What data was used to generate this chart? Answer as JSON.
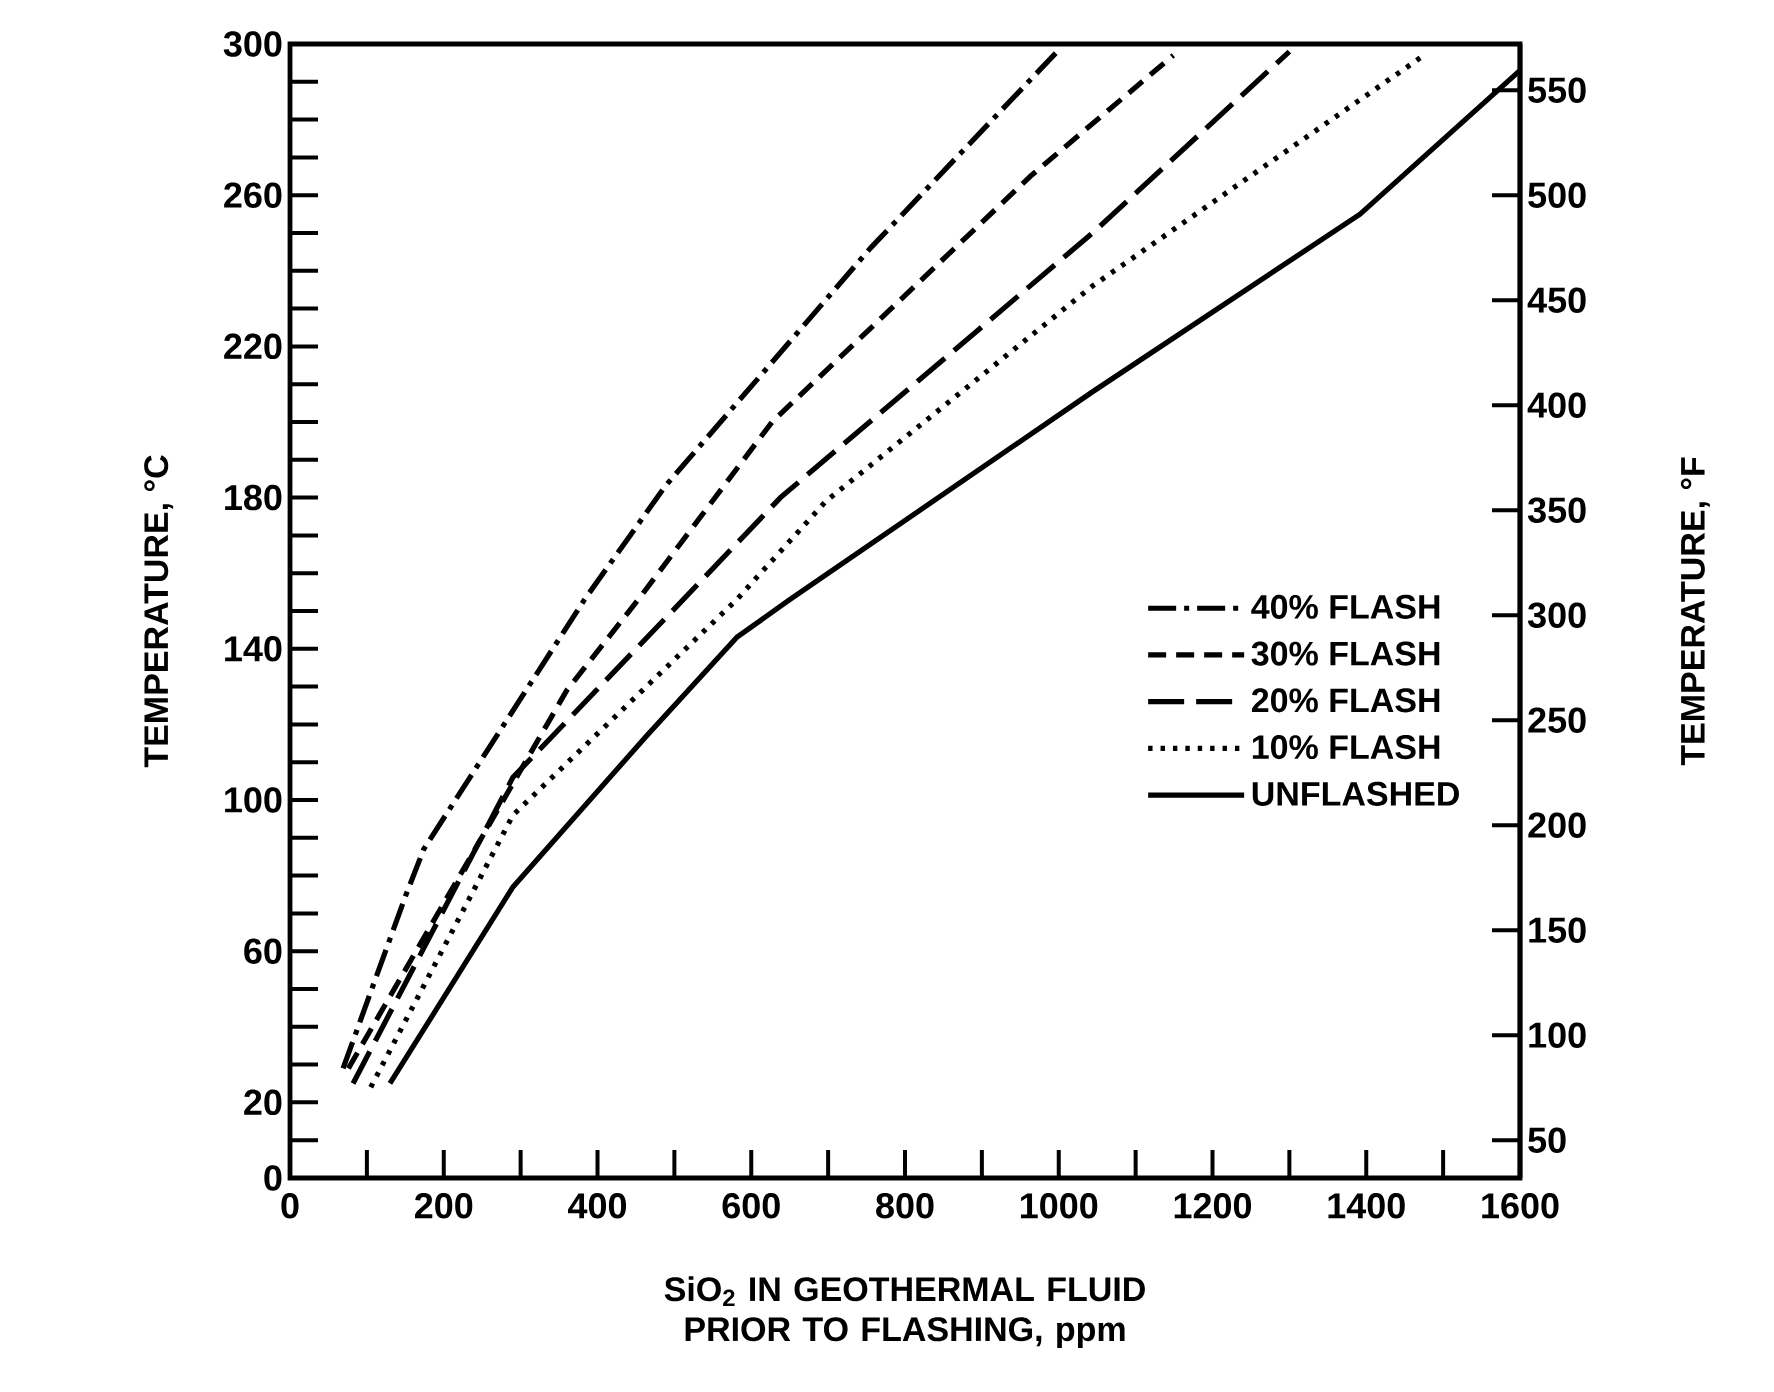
{
  "chart_data": {
    "type": "line",
    "xlabel": "SiO$_{2}$ IN GEOTHERMAL FLUID PRIOR TO FLASHING, ppm",
    "ylabel": "TEMPERATURE, °C",
    "y2label": "TEMPERATURE, °F",
    "xlim": [
      0,
      1600
    ],
    "ylim": [
      0,
      300
    ],
    "y2lim": [
      32,
      572
    ],
    "xticks": [
      0,
      {
        "value": 100,
        "label": null
      },
      200,
      {
        "value": 300,
        "label": null
      },
      400,
      {
        "value": 500,
        "label": null
      },
      600,
      {
        "value": 700,
        "label": null
      },
      800,
      {
        "value": 900,
        "label": null
      },
      1000,
      {
        "value": 1100,
        "label": null
      },
      1200,
      {
        "value": 1300,
        "label": null
      },
      1400,
      {
        "value": 1500,
        "label": null
      },
      1600
    ],
    "yticks": [
      0,
      {
        "value": 10,
        "label": null
      },
      20,
      {
        "value": 30,
        "label": null
      },
      {
        "value": 40,
        "label": null
      },
      {
        "value": 50,
        "label": null
      },
      60,
      {
        "value": 70,
        "label": null
      },
      {
        "value": 80,
        "label": null
      },
      {
        "value": 90,
        "label": null
      },
      100,
      {
        "value": 110,
        "label": null
      },
      {
        "value": 120,
        "label": null
      },
      {
        "value": 130,
        "label": null
      },
      140,
      {
        "value": 150,
        "label": null
      },
      {
        "value": 160,
        "label": null
      },
      {
        "value": 170,
        "label": null
      },
      180,
      {
        "value": 190,
        "label": null
      },
      {
        "value": 200,
        "label": null
      },
      {
        "value": 210,
        "label": null
      },
      220,
      {
        "value": 230,
        "label": null
      },
      {
        "value": 240,
        "label": null
      },
      {
        "value": 250,
        "label": null
      },
      260,
      {
        "value": 270,
        "label": null
      },
      {
        "value": 280,
        "label": null
      },
      {
        "value": 290,
        "label": null
      },
      300
    ],
    "y2ticks": [
      50,
      100,
      150,
      200,
      250,
      300,
      350,
      400,
      450,
      500,
      550
    ],
    "grid": false,
    "legend": "right",
    "marker": "none",
    "series": [
      {
        "name": "40% FLASH",
        "color": "#000000",
        "line_style": "dashdot",
        "x": [
          69,
          151,
          174,
          383,
          488,
          755,
          998
        ],
        "values": [
          29,
          75,
          87,
          153,
          183,
          246,
          298
        ]
      },
      {
        "name": "30% FLASH",
        "color": "#000000",
        "line_style": "dashed",
        "x": [
          76,
          360,
          453,
          627,
          963,
          1149
        ],
        "values": [
          29,
          129,
          153,
          200,
          265,
          297
        ]
      },
      {
        "name": "20% FLASH",
        "color": "#000000",
        "line_style": "long dashed",
        "x": [
          82,
          290,
          488,
          638,
          1044,
          1300
        ],
        "values": [
          25,
          106,
          148,
          180,
          250,
          298
        ]
      },
      {
        "name": "10% FLASH",
        "color": "#000000",
        "line_style": "dotted",
        "x": [
          105,
          290,
          581,
          697,
          1044,
          1475
        ],
        "values": [
          24,
          96,
          153,
          179,
          236,
          297
        ]
      },
      {
        "name": "UNFLASHED",
        "color": "#000000",
        "line_style": "solid",
        "x": [
          130,
          290,
          464,
          581,
          650,
          1044,
          1392,
          1600
        ],
        "values": [
          25,
          77,
          117,
          143,
          153,
          208,
          255,
          293
        ]
      }
    ]
  }
}
